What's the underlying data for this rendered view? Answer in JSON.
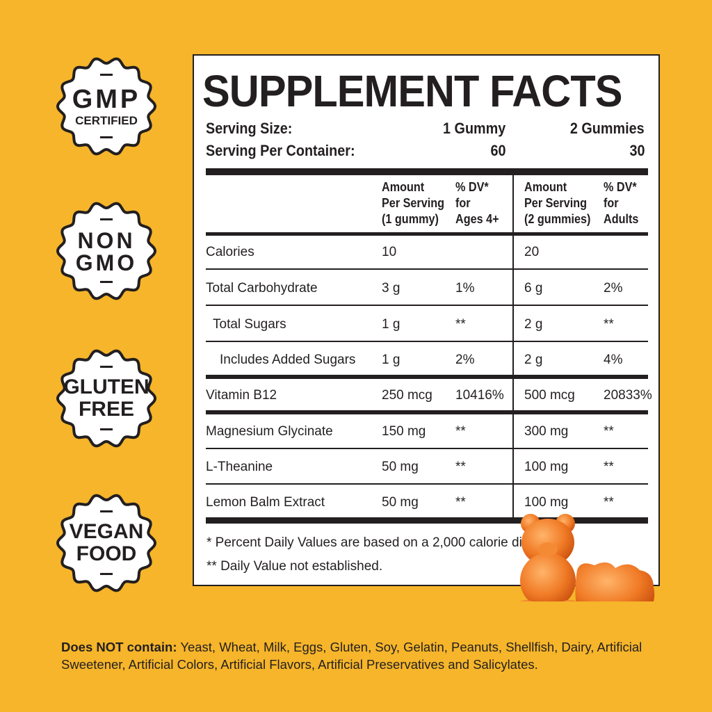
{
  "background_color": "#F6B52A",
  "badges": [
    {
      "lines": [
        "GMP",
        "CERTIFIED"
      ],
      "icon": "gmp-certified-seal-icon"
    },
    {
      "lines": [
        "NON",
        "GMO"
      ],
      "icon": "non-gmo-seal-icon"
    },
    {
      "lines": [
        "GLUTEN",
        "FREE"
      ],
      "icon": "gluten-free-seal-icon"
    },
    {
      "lines": [
        "VEGAN",
        "FOOD"
      ],
      "icon": "vegan-food-seal-icon"
    }
  ],
  "facts": {
    "title": "SUPPLEMENT FACTS",
    "serving_size_label": "Serving Size:",
    "serving_size_1": "1 Gummy",
    "serving_size_2": "2 Gummies",
    "servings_label": "Serving Per Container:",
    "servings_1": "60",
    "servings_2": "30",
    "headers": {
      "amt1": [
        "Amount",
        "Per Serving",
        "(1 gummy)"
      ],
      "dv1": [
        "% DV*",
        "for",
        "Ages 4+"
      ],
      "amt2": [
        "Amount",
        "Per Serving",
        "(2 gummies)"
      ],
      "dv2": [
        "% DV*",
        "for",
        "Adults"
      ]
    },
    "rows": [
      {
        "name": "Calories",
        "amt1": "10",
        "dv1": "",
        "amt2": "20",
        "dv2": "",
        "indent": 0
      },
      {
        "name": "Total Carbohydrate",
        "amt1": "3 g",
        "dv1": "1%",
        "amt2": "6 g",
        "dv2": "2%",
        "indent": 0
      },
      {
        "name": "Total Sugars",
        "amt1": "1 g",
        "dv1": "**",
        "amt2": "2 g",
        "dv2": "**",
        "indent": 1
      },
      {
        "name": "Includes Added Sugars",
        "amt1": "1 g",
        "dv1": "2%",
        "amt2": "2 g",
        "dv2": "4%",
        "indent": 2
      },
      {
        "name": "Vitamin B12",
        "amt1": "250 mcg",
        "dv1": "10416%",
        "amt2": "500 mcg",
        "dv2": "20833%",
        "indent": 0
      },
      {
        "name": "Magnesium Glycinate",
        "amt1": "150 mg",
        "dv1": "**",
        "amt2": "300 mg",
        "dv2": "**",
        "indent": 0
      },
      {
        "name": "L-Theanine",
        "amt1": "50 mg",
        "dv1": "**",
        "amt2": "100 mg",
        "dv2": "**",
        "indent": 0
      },
      {
        "name": "Lemon Balm Extract",
        "amt1": "50 mg",
        "dv1": "**",
        "amt2": "100 mg",
        "dv2": "**",
        "indent": 0
      }
    ],
    "footnote_1": "* Percent Daily Values are based on a 2,000 calorie diet.",
    "footnote_2": "** Daily Value not established."
  },
  "bottom": {
    "label": "Does NOT contain:",
    "text": " Yeast, Wheat, Milk, Eggs, Gluten, Soy, Gelatin, Peanuts, Shellfish, Dairy, Artificial Sweetener, Artificial Colors, Artificial Flavors, Artificial Preservatives and Salicylates."
  },
  "product_image": "gummy-bear-image"
}
